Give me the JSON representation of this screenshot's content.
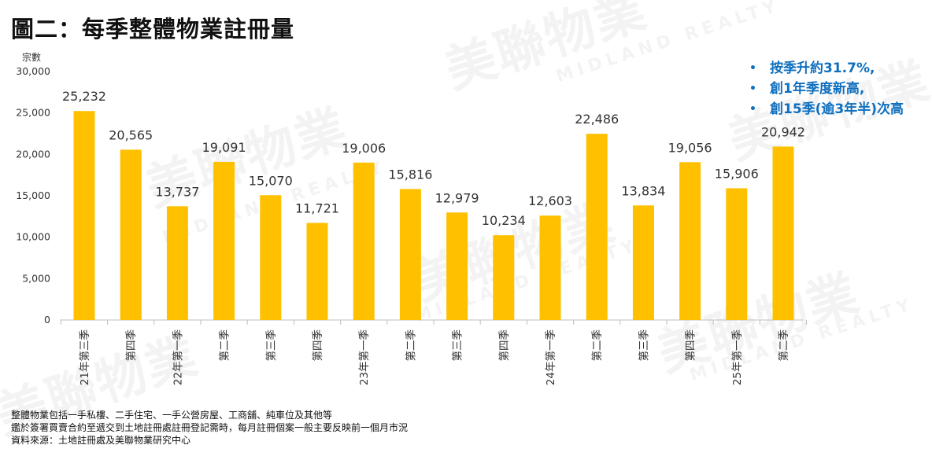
{
  "title": "圖二：每季整體物業註冊量",
  "unit_label": "宗數",
  "notes": [
    "按季升約31.7%,",
    "創1年季度新高,",
    "創15季(逾3年半)次高"
  ],
  "footnotes": [
    "整體物業包括一手私樓、二手住宅、一手公營房屋、工商舖、純車位及其他等",
    "鑑於簽署買賣合約至遞交到土地註冊處註冊登記需時，每月註冊個案一般主要反映前一個月市況",
    "資料來源：土地註冊處及美聯物業研究中心"
  ],
  "watermark": {
    "brand": "美聯物業",
    "latin": "MIDLAND REALTY"
  },
  "colors": {
    "bar": "#FFC000",
    "notes": "#0f6fbf"
  },
  "chart_data": {
    "type": "bar",
    "title": "",
    "ylabel": "宗數",
    "ylim": [
      0,
      30000
    ],
    "yticks": [
      0,
      5000,
      10000,
      15000,
      20000,
      25000,
      30000
    ],
    "ytick_labels": [
      "0",
      "5,000",
      "10,000",
      "15,000",
      "20,000",
      "25,000",
      "30,000"
    ],
    "grid": false,
    "categories": [
      "21年第三季",
      "第四季",
      "22年第一季",
      "第二季",
      "第三季",
      "第四季",
      "23年第一季",
      "第二季",
      "第三季",
      "第四季",
      "24年第一季",
      "第二季",
      "第三季",
      "第四季",
      "25年第一季",
      "第二季"
    ],
    "values": [
      25232,
      20565,
      13737,
      19091,
      15070,
      11721,
      19006,
      15816,
      12979,
      10234,
      12603,
      22486,
      13834,
      19056,
      15906,
      20942
    ],
    "value_labels": [
      "25,232",
      "20,565",
      "13,737",
      "19,091",
      "15,070",
      "11,721",
      "19,006",
      "15,816",
      "12,979",
      "10,234",
      "12,603",
      "22,486",
      "13,834",
      "19,056",
      "15,906",
      "20,942"
    ]
  }
}
